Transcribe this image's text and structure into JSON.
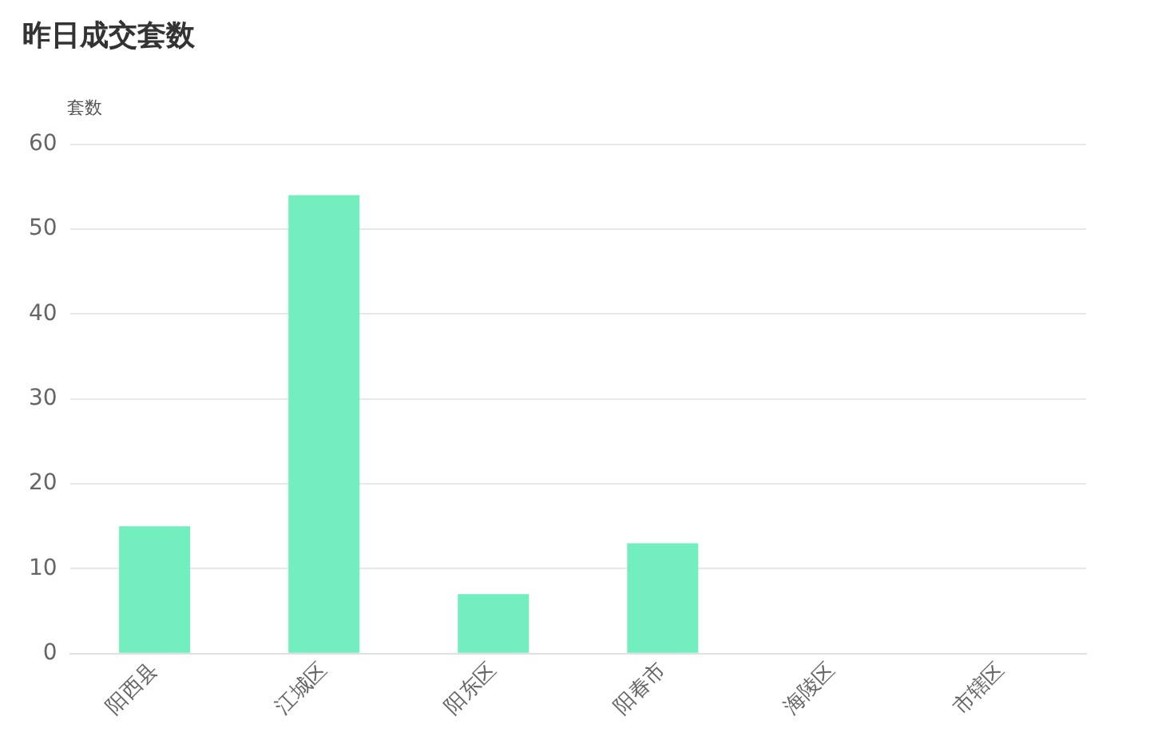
{
  "chart_data": {
    "type": "bar",
    "title": "昨日成交套数",
    "ylabel": "套数",
    "categories": [
      "阳西县",
      "江城区",
      "阳东区",
      "阳春市",
      "海陵区",
      "市辖区"
    ],
    "values": [
      15,
      54,
      7,
      13,
      0,
      0
    ],
    "color": "#73eebe",
    "ylim": [
      0,
      60
    ],
    "yticks": [
      0,
      10,
      20,
      30,
      40,
      50,
      60
    ],
    "grid": "y"
  }
}
